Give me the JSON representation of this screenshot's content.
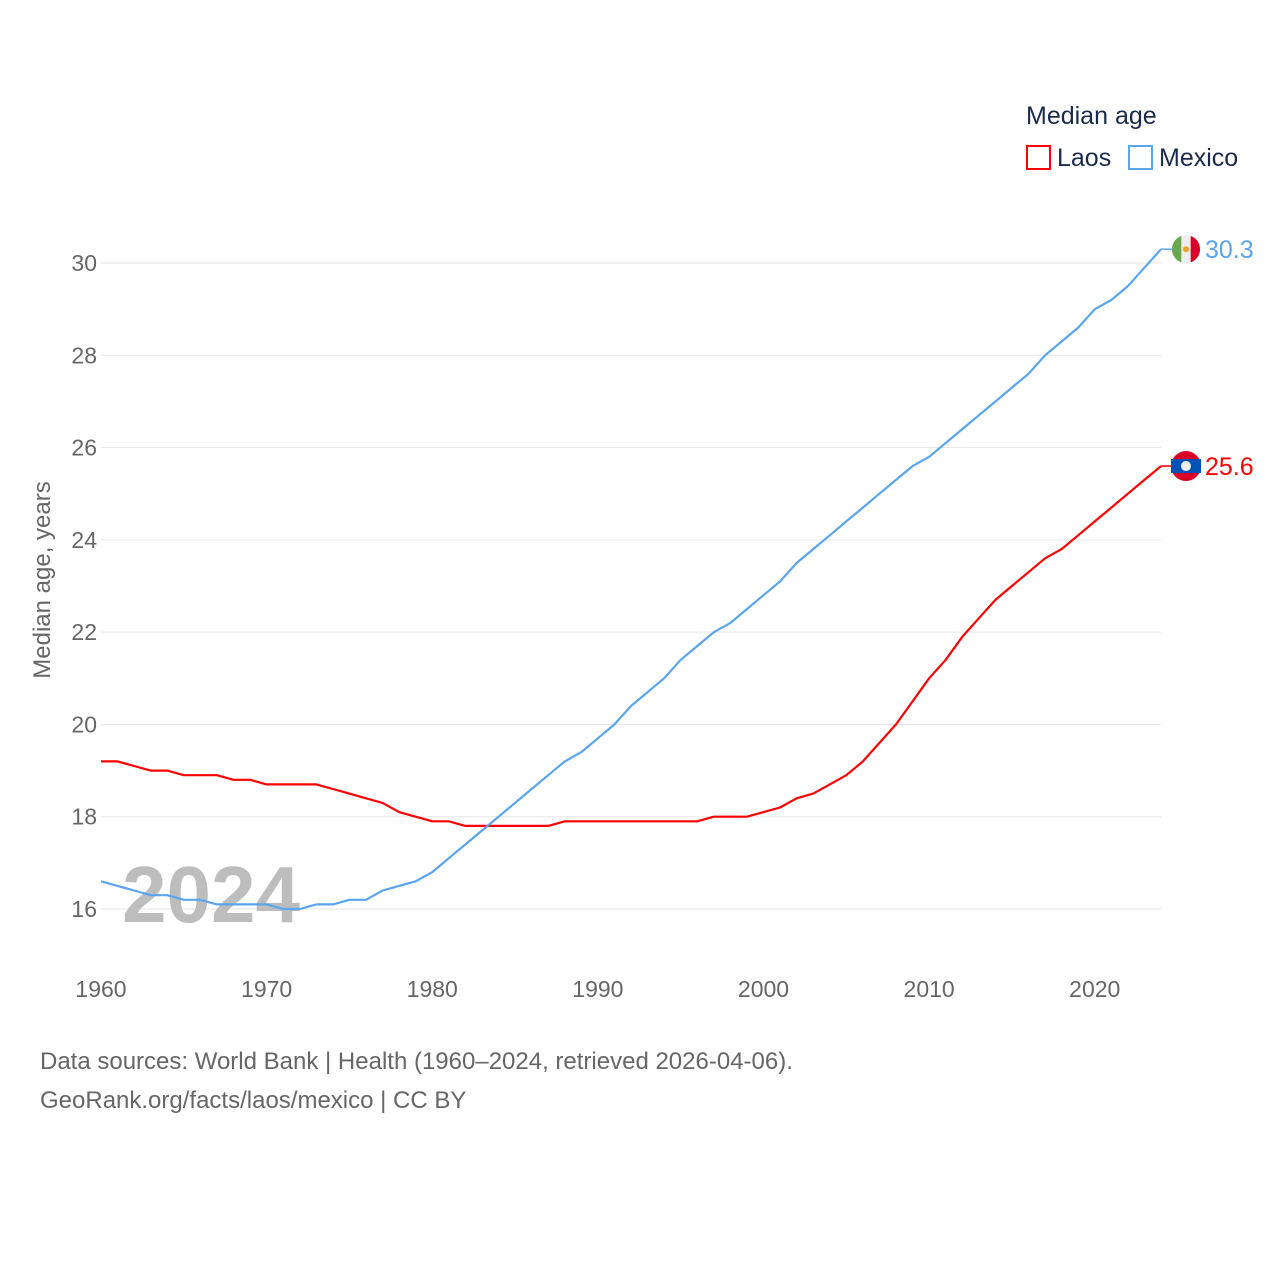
{
  "chart_data": {
    "type": "line",
    "title": "",
    "xlabel": "",
    "ylabel": "Median age, years",
    "xlim": [
      1960,
      2024
    ],
    "ylim": [
      15,
      31
    ],
    "yticks": [
      16,
      18,
      20,
      22,
      24,
      26,
      28,
      30
    ],
    "xticks": [
      1960,
      1970,
      1980,
      1990,
      2000,
      2010,
      2020
    ],
    "grid": true,
    "legend": {
      "title": "Median age",
      "placement": "top-right"
    },
    "year_watermark": "2024",
    "x": [
      1960,
      1961,
      1962,
      1963,
      1964,
      1965,
      1966,
      1967,
      1968,
      1969,
      1970,
      1971,
      1972,
      1973,
      1974,
      1975,
      1976,
      1977,
      1978,
      1979,
      1980,
      1981,
      1982,
      1983,
      1984,
      1985,
      1986,
      1987,
      1988,
      1989,
      1990,
      1991,
      1992,
      1993,
      1994,
      1995,
      1996,
      1997,
      1998,
      1999,
      2000,
      2001,
      2002,
      2003,
      2004,
      2005,
      2006,
      2007,
      2008,
      2009,
      2010,
      2011,
      2012,
      2013,
      2014,
      2015,
      2016,
      2017,
      2018,
      2019,
      2020,
      2021,
      2022,
      2023,
      2024
    ],
    "series": [
      {
        "name": "Laos",
        "color": "#ff0000",
        "end_label": "25.6",
        "values": [
          19.2,
          19.2,
          19.1,
          19.0,
          19.0,
          18.9,
          18.9,
          18.9,
          18.8,
          18.8,
          18.7,
          18.7,
          18.7,
          18.7,
          18.6,
          18.5,
          18.4,
          18.3,
          18.1,
          18.0,
          17.9,
          17.9,
          17.8,
          17.8,
          17.8,
          17.8,
          17.8,
          17.8,
          17.9,
          17.9,
          17.9,
          17.9,
          17.9,
          17.9,
          17.9,
          17.9,
          17.9,
          18.0,
          18.0,
          18.0,
          18.1,
          18.2,
          18.4,
          18.5,
          18.7,
          18.9,
          19.2,
          19.6,
          20.0,
          20.5,
          21.0,
          21.4,
          21.9,
          22.3,
          22.7,
          23.0,
          23.3,
          23.6,
          23.8,
          24.1,
          24.4,
          24.7,
          25.0,
          25.3,
          25.6
        ]
      },
      {
        "name": "Mexico",
        "color": "#5aa5ee",
        "end_label": "30.3",
        "values": [
          16.6,
          16.5,
          16.4,
          16.3,
          16.3,
          16.2,
          16.2,
          16.1,
          16.1,
          16.1,
          16.1,
          16.0,
          16.0,
          16.1,
          16.1,
          16.2,
          16.2,
          16.4,
          16.5,
          16.6,
          16.8,
          17.1,
          17.4,
          17.7,
          18.0,
          18.3,
          18.6,
          18.9,
          19.2,
          19.4,
          19.7,
          20.0,
          20.4,
          20.7,
          21.0,
          21.4,
          21.7,
          22.0,
          22.2,
          22.5,
          22.8,
          23.1,
          23.5,
          23.8,
          24.1,
          24.4,
          24.7,
          25.0,
          25.3,
          25.6,
          25.8,
          26.1,
          26.4,
          26.7,
          27.0,
          27.3,
          27.6,
          28.0,
          28.3,
          28.6,
          29.0,
          29.2,
          29.5,
          29.9,
          30.3
        ]
      }
    ]
  },
  "footer": {
    "line1": "Data sources: World Bank | Health (1960–2024, retrieved 2026-04-06).",
    "line2": "GeoRank.org/facts/laos/mexico | CC BY"
  }
}
